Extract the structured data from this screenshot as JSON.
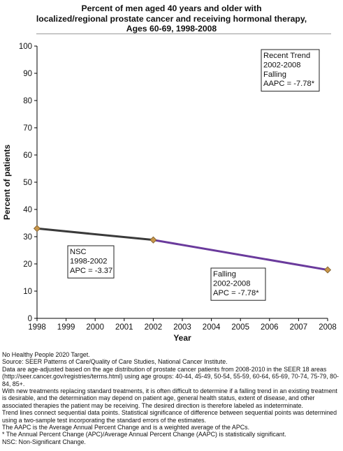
{
  "title": "Percent of men aged 40 years and older with\nlocalized/regional prostate cancer and receiving hormonal therapy,\nAges 60-69,  1998-2008",
  "colors": {
    "nsc_line": "#3a3a3a",
    "falling_line": "#6a3a9c",
    "marker_fill": "#c8964a",
    "marker_stroke": "#7a5a2a",
    "axis": "#000000"
  },
  "chart_data": {
    "type": "line",
    "xlabel": "Year",
    "ylabel": "Percent of patients",
    "xlim": [
      1998,
      2008
    ],
    "ylim": [
      0,
      100
    ],
    "x_ticks": [
      "1998",
      "1999",
      "2000",
      "2001",
      "2002",
      "2003",
      "2004",
      "2005",
      "2006",
      "2007",
      "2008"
    ],
    "y_ticks": [
      "0",
      "10",
      "20",
      "30",
      "40",
      "50",
      "60",
      "70",
      "80",
      "90",
      "100"
    ],
    "grid": false,
    "points": [
      {
        "x": 1998,
        "y": 33.0
      },
      {
        "x": 2002,
        "y": 28.8
      },
      {
        "x": 2008,
        "y": 17.8
      }
    ],
    "trend_segments": [
      {
        "from": 1998,
        "to": 2002,
        "y_start": 33.0,
        "y_end": 28.8,
        "kind": "nsc"
      },
      {
        "from": 2002,
        "to": 2008,
        "y_start": 28.8,
        "y_end": 17.8,
        "kind": "falling"
      }
    ],
    "annotations": [
      {
        "lines": [
          "Recent Trend",
          "2002-2008",
          "Falling",
          "AAPC = -7.78*"
        ],
        "position": "top-right"
      },
      {
        "lines": [
          "NSC",
          "1998-2002",
          "APC = -3.37"
        ],
        "position": "below first segment"
      },
      {
        "lines": [
          "Falling",
          "2002-2008",
          "APC = -7.78*"
        ],
        "position": "below second segment"
      }
    ]
  },
  "footnotes": [
    "No Healthy People 2020 Target.",
    "Source: SEER Patterns of Care/Quality of Care Studies, National Cancer Institute.",
    "Data are age-adjusted based on the age distribution of prostate cancer patients from 2008-2010 in the SEER 18 areas (http://seer.cancer.gov/registries/terms.html) using age groups: 40-44, 45-49, 50-54, 55-59, 60-64, 65-69, 70-74, 75-79, 80-84, 85+.",
    "With new treatments replacing standard treatments, it is often difficult to determine if a falling trend in an existing treatment is desirable, and the determination may depend on patient age, general health status, extent of disease, and other associated therapies the patient may be receiving.  The desired direction is therefore labeled as indeterminate.",
    "Trend lines connect sequential data points. Statistical significance of difference between sequential points was determined using a two-sample test incorporating the standard errors of the estimates.",
    "The AAPC is the Average Annual Percent Change and is a weighted average of the APCs.",
    "* The Annual Percent Change (APC)/Average Annual Percent Change (AAPC) is statistically significant.",
    "NSC: Non-Significant Change."
  ]
}
